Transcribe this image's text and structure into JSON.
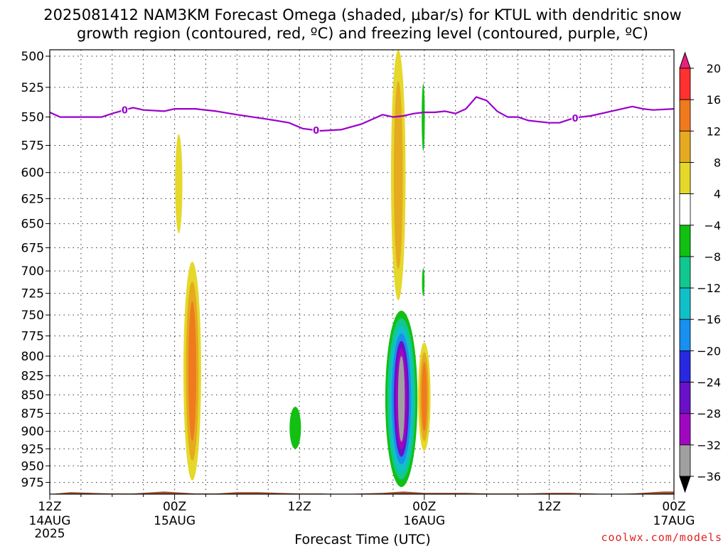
{
  "chart_data": {
    "type": "heatmap",
    "title": "2025081412 NAM3KM Forecast Omega (shaded, μbar/s) for KTUL with dendritic snow",
    "subtitle": "growth region (contoured, red, ºC) and freezing level (contoured, purple, ºC)",
    "xlabel": "Forecast Time (UTC)",
    "ylabel": "",
    "credit": "coolwx.com/models",
    "x_ticks": [
      {
        "label": "12Z",
        "date": "14AUG",
        "year": "2025",
        "hours": 0
      },
      {
        "label": "00Z",
        "date": "15AUG",
        "hours": 12
      },
      {
        "label": "12Z",
        "date": "",
        "hours": 24
      },
      {
        "label": "00Z",
        "date": "16AUG",
        "hours": 36
      },
      {
        "label": "12Z",
        "date": "",
        "hours": 48
      },
      {
        "label": "00Z",
        "date": "17AUG",
        "hours": 60
      }
    ],
    "xlim_hours": [
      0,
      60
    ],
    "y_ticks": [
      500,
      525,
      550,
      575,
      600,
      625,
      650,
      675,
      700,
      725,
      750,
      775,
      800,
      825,
      850,
      875,
      900,
      925,
      950,
      975
    ],
    "ylim_mb": [
      495,
      993
    ],
    "y_scale": "log-pressure",
    "grid": true,
    "colorbar": {
      "position": "right",
      "levels": [
        "20",
        "16",
        "12",
        "8",
        "4",
        "−4",
        "−8",
        "−12",
        "−16",
        "−20",
        "−24",
        "−28",
        "−32",
        "−36"
      ],
      "colors": [
        "#e8207e",
        "#ff3030",
        "#f07a1e",
        "#e5aa20",
        "#e5d82a",
        "#ffffff",
        "#12c012",
        "#10c890",
        "#10c0c8",
        "#1890ee",
        "#2828e0",
        "#6a10c8",
        "#a008c0",
        "#a0a0a0",
        "#000000"
      ]
    },
    "colors": {
      "freezing_level": "#9a00cc",
      "ground": "#a0522d",
      "omega_4_8": "#e5d82a",
      "omega_8_12": "#e5aa20",
      "omega_12_16": "#f07a1e",
      "omega_neg4": "#12c012",
      "omega_neg8": "#10c890",
      "omega_neg12": "#10c0c8",
      "omega_neg16": "#1890ee",
      "omega_neg24": "#6a10c8",
      "omega_neg28": "#a008c0",
      "omega_neg32": "#a0a0a0"
    },
    "freezing_level_line": {
      "label": "0",
      "hours": [
        0,
        1,
        3,
        5,
        6,
        8,
        9,
        11,
        12,
        14,
        16,
        18,
        21,
        23,
        24.3,
        26,
        28,
        30,
        32,
        33,
        34,
        35,
        36,
        37,
        38,
        39,
        40,
        41,
        42,
        43,
        44,
        45,
        46,
        48,
        49,
        50,
        51,
        52,
        54,
        56,
        57,
        58,
        60
      ],
      "pressure": [
        546,
        550,
        550,
        550,
        547,
        542,
        544,
        545,
        543,
        543,
        545,
        548,
        552,
        555,
        560,
        562,
        561,
        556,
        548,
        550,
        549,
        547,
        546,
        546,
        545,
        547,
        543,
        533,
        536,
        545,
        550,
        550,
        553,
        555,
        555,
        552,
        550,
        549,
        545,
        541,
        543,
        544,
        543
      ],
      "label_hours": [
        7.2,
        25.6,
        50.5
      ]
    },
    "omega_blobs": [
      {
        "hours": 12.4,
        "top_mb": 565,
        "bottom_mb": 660,
        "half_width_hours": 0.35,
        "levels": [
          4
        ]
      },
      {
        "hours": 13.7,
        "top_mb": 690,
        "bottom_mb": 972,
        "half_width_hours": 0.85,
        "levels": [
          4,
          8,
          12
        ]
      },
      {
        "hours": 33.5,
        "top_mb": 495,
        "bottom_mb": 733,
        "half_width_hours": 0.7,
        "levels": [
          4,
          8
        ]
      },
      {
        "hours": 36.0,
        "top_mb": 783,
        "bottom_mb": 928,
        "half_width_hours": 0.6,
        "levels": [
          4,
          8,
          12
        ]
      },
      {
        "hours": 23.6,
        "top_mb": 866,
        "bottom_mb": 925,
        "half_width_hours": 0.55,
        "levels": [
          -4
        ]
      },
      {
        "hours": 35.9,
        "top_mb": 522,
        "bottom_mb": 580,
        "half_width_hours": 0.15,
        "levels": [
          -4
        ]
      },
      {
        "hours": 35.9,
        "top_mb": 697,
        "bottom_mb": 728,
        "half_width_hours": 0.12,
        "levels": [
          -4
        ]
      },
      {
        "hours": 33.8,
        "top_mb": 745,
        "bottom_mb": 982,
        "half_width_hours": 1.55,
        "levels": [
          -4,
          -8,
          -12,
          -16,
          -24,
          -28,
          -32
        ]
      }
    ],
    "ground_surface_mb": [
      [
        0,
        993
      ],
      [
        2,
        990
      ],
      [
        4,
        991
      ],
      [
        6,
        992
      ],
      [
        8,
        992
      ],
      [
        10,
        990
      ],
      [
        11,
        989
      ],
      [
        12,
        990
      ],
      [
        14,
        992
      ],
      [
        16,
        992
      ],
      [
        18,
        990
      ],
      [
        20,
        990
      ],
      [
        22,
        991
      ],
      [
        24,
        992
      ],
      [
        26,
        992
      ],
      [
        28,
        993
      ],
      [
        30,
        992
      ],
      [
        32,
        991
      ],
      [
        33,
        990
      ],
      [
        34,
        989
      ],
      [
        35,
        990
      ],
      [
        36,
        991
      ],
      [
        38,
        991
      ],
      [
        40,
        991
      ],
      [
        42,
        992
      ],
      [
        44,
        992
      ],
      [
        46,
        992
      ],
      [
        48,
        991
      ],
      [
        50,
        991
      ],
      [
        52,
        992
      ],
      [
        54,
        993
      ],
      [
        56,
        992
      ],
      [
        58,
        990
      ],
      [
        59,
        989
      ],
      [
        60,
        989
      ]
    ]
  }
}
